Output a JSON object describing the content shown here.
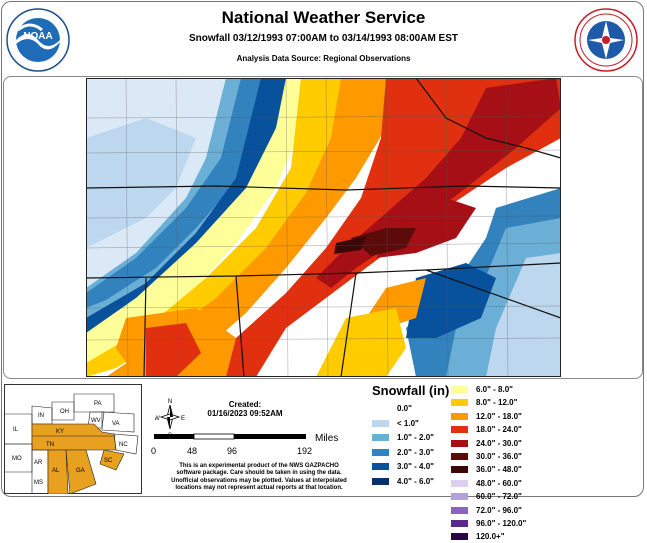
{
  "header": {
    "title": "National Weather Service",
    "subtitle": "Snowfall 03/12/1993 07:00AM to 03/14/1993 08:00AM EST",
    "source": "Analysis Data Source: Regional Observations"
  },
  "logos": {
    "left": {
      "name": "noaa-logo",
      "text": "NOAA"
    },
    "right": {
      "name": "nws-logo"
    }
  },
  "inset": {
    "states": [
      "IN",
      "OH",
      "PA",
      "IL",
      "WV",
      "VA",
      "KY",
      "MO",
      "TN",
      "NC",
      "AR",
      "SC",
      "MS",
      "AL",
      "GA"
    ],
    "highlight_color": "#e8a020"
  },
  "created": {
    "label": "Created:",
    "timestamp": "01/16/2023 09:52AM"
  },
  "scale": {
    "unit": "Miles",
    "ticks": [
      "0",
      "48",
      "96",
      "192"
    ]
  },
  "disclaimer": [
    "This is an experimental product of the NWS GAZPACHO",
    "software package. Care should be taken in using the data.",
    "Unofficial observations may be plotted. Values at interpolated",
    "locations may not represent actual reports at that location."
  ],
  "legend": {
    "title": "Snowfall (in)",
    "items": [
      {
        "label": "0.0\"",
        "color": "#ffffff"
      },
      {
        "label": "< 1.0\"",
        "color": "#bdd7ee"
      },
      {
        "label": "1.0\" - 2.0\"",
        "color": "#6baed6"
      },
      {
        "label": "2.0\" - 3.0\"",
        "color": "#3182bd"
      },
      {
        "label": "3.0\" - 4.0\"",
        "color": "#08519c"
      },
      {
        "label": "4.0\" - 6.0\"",
        "color": "#08306b"
      },
      {
        "label": "6.0\" - 8.0\"",
        "color": "#ffff99"
      },
      {
        "label": "8.0\" - 12.0\"",
        "color": "#ffcc00"
      },
      {
        "label": "12.0\" - 18.0\"",
        "color": "#ff9900"
      },
      {
        "label": "18.0\" - 24.0\"",
        "color": "#e03010"
      },
      {
        "label": "24.0\" - 30.0\"",
        "color": "#a50f15"
      },
      {
        "label": "30.0\" - 36.0\"",
        "color": "#5c0a0a"
      },
      {
        "label": "36.0\" - 48.0\"",
        "color": "#3b0808"
      },
      {
        "label": "48.0\" - 60.0\"",
        "color": "#dcd0f0"
      },
      {
        "label": "60.0\" - 72.0\"",
        "color": "#b4a0dc"
      },
      {
        "label": "72.0\" - 96.0\"",
        "color": "#8c64c0"
      },
      {
        "label": "96.0\" - 120.0\"",
        "color": "#5a2890"
      },
      {
        "label": "120.0+\"",
        "color": "#2a0840"
      }
    ]
  }
}
